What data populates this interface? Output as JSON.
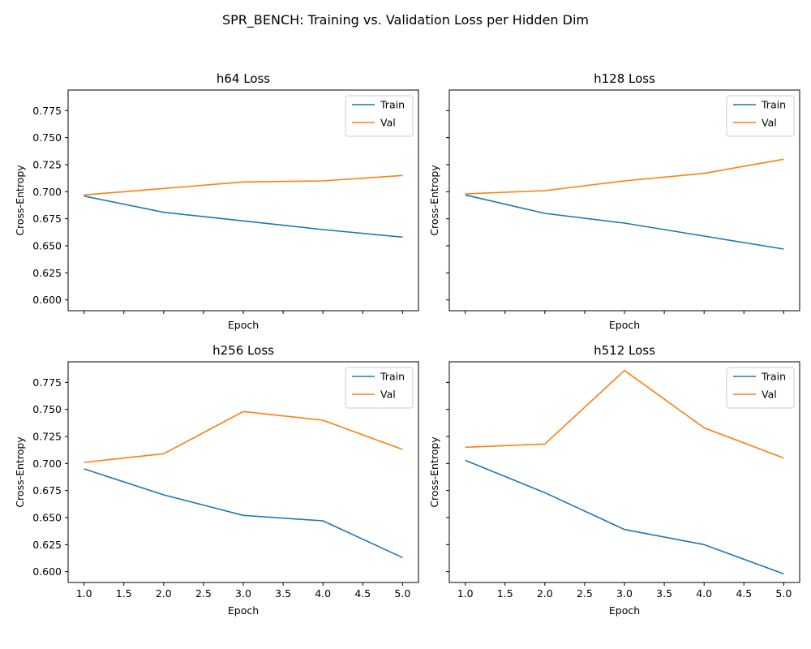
{
  "figure": {
    "suptitle": "SPR_BENCH: Training vs. Validation Loss per Hidden Dim"
  },
  "colors": {
    "train": "#1f77b4",
    "val": "#ff7f0e"
  },
  "legend": {
    "placement": "upper right"
  },
  "chart_data": [
    {
      "type": "line",
      "title": "h64 Loss",
      "xlabel": "Epoch",
      "ylabel": "Cross-Entropy",
      "x": [
        1,
        2,
        3,
        4,
        5
      ],
      "xlim": [
        0.8,
        5.2
      ],
      "ylim": [
        0.59,
        0.794
      ],
      "xticks": [
        "1.0",
        "1.5",
        "2.0",
        "2.5",
        "3.0",
        "3.5",
        "4.0",
        "4.5",
        "5.0"
      ],
      "yticks": [
        "0.600",
        "0.625",
        "0.650",
        "0.675",
        "0.700",
        "0.725",
        "0.750",
        "0.775"
      ],
      "show_xtick_labels": false,
      "show_ytick_labels": true,
      "grid": false,
      "legend": "top-right",
      "series": [
        {
          "name": "Train",
          "values": [
            0.696,
            0.681,
            0.673,
            0.665,
            0.658
          ]
        },
        {
          "name": "Val",
          "values": [
            0.697,
            0.703,
            0.709,
            0.71,
            0.715
          ]
        }
      ]
    },
    {
      "type": "line",
      "title": "h128 Loss",
      "xlabel": "Epoch",
      "ylabel": "Cross-Entropy",
      "x": [
        1,
        2,
        3,
        4,
        5
      ],
      "xlim": [
        0.8,
        5.2
      ],
      "ylim": [
        0.59,
        0.794
      ],
      "xticks": [
        "1.0",
        "1.5",
        "2.0",
        "2.5",
        "3.0",
        "3.5",
        "4.0",
        "4.5",
        "5.0"
      ],
      "yticks": [
        "0.600",
        "0.625",
        "0.650",
        "0.675",
        "0.700",
        "0.725",
        "0.750",
        "0.775"
      ],
      "show_xtick_labels": false,
      "show_ytick_labels": false,
      "grid": false,
      "legend": "top-right",
      "series": [
        {
          "name": "Train",
          "values": [
            0.697,
            0.68,
            0.671,
            0.659,
            0.647
          ]
        },
        {
          "name": "Val",
          "values": [
            0.698,
            0.701,
            0.71,
            0.717,
            0.73
          ]
        }
      ]
    },
    {
      "type": "line",
      "title": "h256 Loss",
      "xlabel": "Epoch",
      "ylabel": "Cross-Entropy",
      "x": [
        1,
        2,
        3,
        4,
        5
      ],
      "xlim": [
        0.8,
        5.2
      ],
      "ylim": [
        0.59,
        0.794
      ],
      "xticks": [
        "1.0",
        "1.5",
        "2.0",
        "2.5",
        "3.0",
        "3.5",
        "4.0",
        "4.5",
        "5.0"
      ],
      "yticks": [
        "0.600",
        "0.625",
        "0.650",
        "0.675",
        "0.700",
        "0.725",
        "0.750",
        "0.775"
      ],
      "show_xtick_labels": true,
      "show_ytick_labels": true,
      "grid": false,
      "legend": "top-right",
      "series": [
        {
          "name": "Train",
          "values": [
            0.695,
            0.671,
            0.652,
            0.647,
            0.613
          ]
        },
        {
          "name": "Val",
          "values": [
            0.701,
            0.709,
            0.748,
            0.74,
            0.713
          ]
        }
      ]
    },
    {
      "type": "line",
      "title": "h512 Loss",
      "xlabel": "Epoch",
      "ylabel": "Cross-Entropy",
      "x": [
        1,
        2,
        3,
        4,
        5
      ],
      "xlim": [
        0.8,
        5.2
      ],
      "ylim": [
        0.59,
        0.794
      ],
      "xticks": [
        "1.0",
        "1.5",
        "2.0",
        "2.5",
        "3.0",
        "3.5",
        "4.0",
        "4.5",
        "5.0"
      ],
      "yticks": [
        "0.600",
        "0.625",
        "0.650",
        "0.675",
        "0.700",
        "0.725",
        "0.750",
        "0.775"
      ],
      "show_xtick_labels": true,
      "show_ytick_labels": false,
      "grid": false,
      "legend": "top-right",
      "series": [
        {
          "name": "Train",
          "values": [
            0.703,
            0.673,
            0.639,
            0.625,
            0.598
          ]
        },
        {
          "name": "Val",
          "values": [
            0.715,
            0.718,
            0.786,
            0.733,
            0.705
          ]
        }
      ]
    }
  ]
}
